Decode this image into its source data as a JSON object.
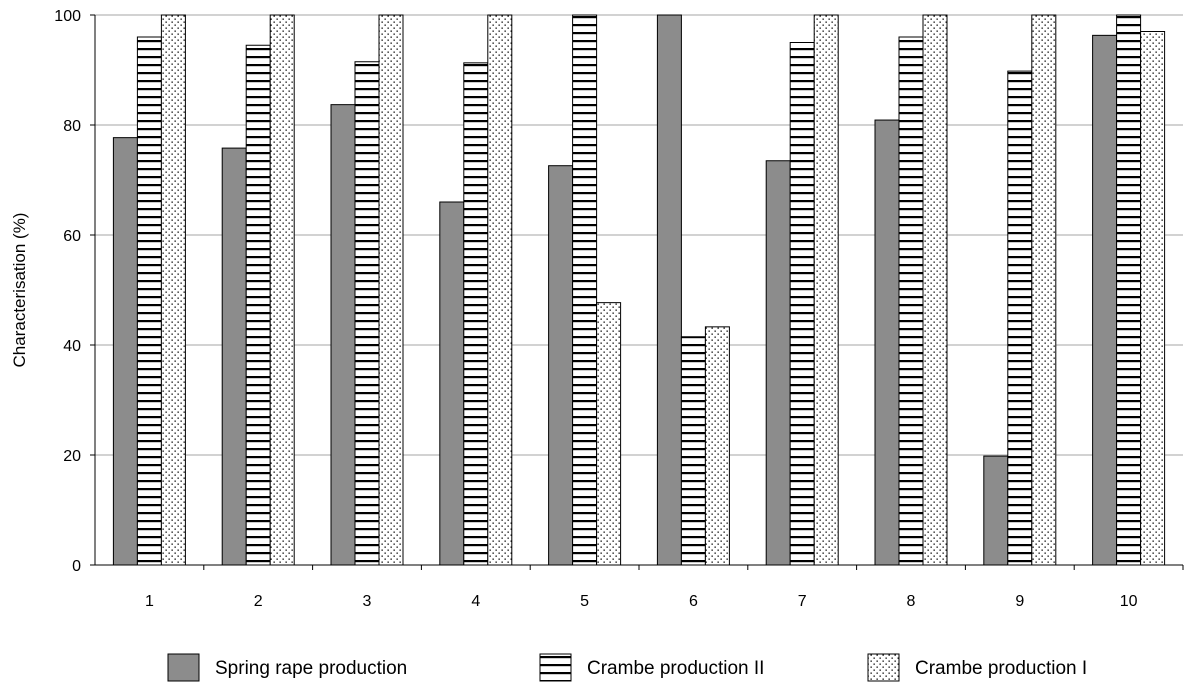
{
  "chart_data": {
    "type": "bar",
    "ylabel": "Characterisation (%)",
    "ylim": [
      0,
      100
    ],
    "yticks": [
      0,
      20,
      40,
      60,
      80,
      100
    ],
    "grid": true,
    "legend_position": "bottom",
    "categories": [
      "1",
      "2",
      "3",
      "4",
      "5",
      "6",
      "7",
      "8",
      "9",
      "10"
    ],
    "series": [
      {
        "name": "Spring rape production",
        "pattern": "solid-gray",
        "color": "#8c8c8c",
        "values": [
          77.7,
          75.8,
          83.7,
          66.0,
          72.6,
          100,
          73.5,
          80.9,
          19.8,
          96.3
        ]
      },
      {
        "name": "Crambe production II",
        "pattern": "horizontal-lines",
        "color": "#000000",
        "values": [
          96.0,
          94.5,
          91.5,
          91.3,
          100,
          41.5,
          95.0,
          96.0,
          89.8,
          100
        ]
      },
      {
        "name": "Crambe production I",
        "pattern": "dots",
        "color": "#000000",
        "values": [
          100,
          100,
          100,
          100,
          47.7,
          43.3,
          100,
          100,
          100,
          97.0
        ]
      }
    ]
  }
}
